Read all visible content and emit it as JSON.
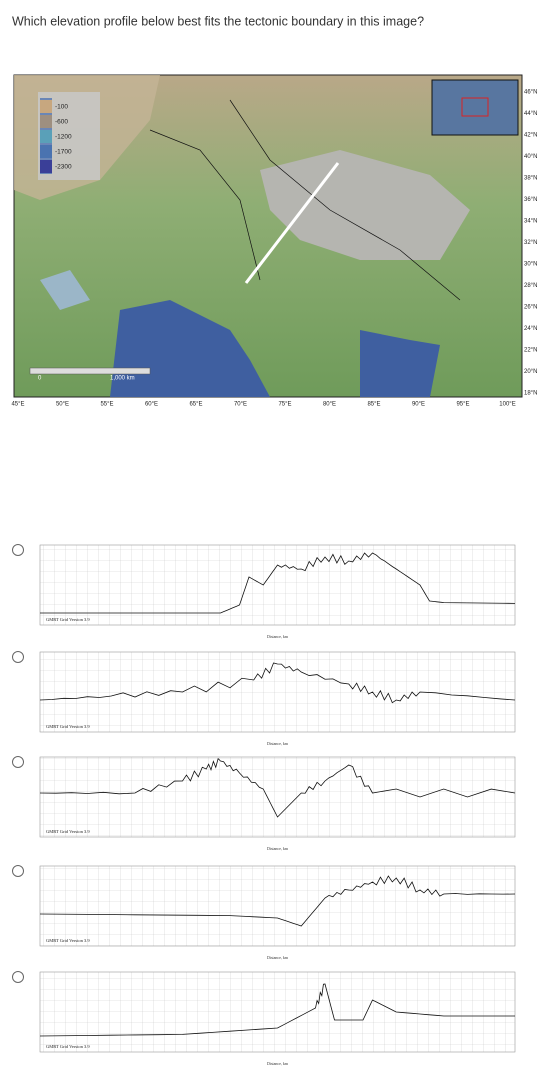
{
  "question": "Which elevation profile below best fits the tectonic boundary in this image?",
  "map": {
    "latitude_labels": [
      "46°N",
      "44°N",
      "42°N",
      "40°N",
      "38°N",
      "36°N",
      "34°N",
      "32°N",
      "30°N",
      "28°N",
      "26°N",
      "24°N",
      "22°N",
      "20°N",
      "18°N"
    ],
    "longitude_labels": [
      "45°E",
      "50°E",
      "55°E",
      "60°E",
      "65°E",
      "70°E",
      "75°E",
      "80°E",
      "85°E",
      "90°E",
      "95°E",
      "100°E"
    ],
    "legend_labels": [
      "-100",
      "-600",
      "-1200",
      "-1700",
      "-2300"
    ],
    "scale_labels": [
      "0",
      "1,000 km"
    ]
  },
  "options": [
    {
      "grid_label": "GMRT Grid Version 3.9",
      "x_axis_label": "Distance, km"
    },
    {
      "grid_label": "GMRT Grid Version 3.9",
      "x_axis_label": "Distance, km"
    },
    {
      "grid_label": "GMRT Grid Version 3.9",
      "x_axis_label": "Distance, km"
    },
    {
      "grid_label": "GMRT Grid Version 3.9",
      "x_axis_label": "Distance, km"
    },
    {
      "grid_label": "GMRT Grid Version 3.9",
      "x_axis_label": "Distance, km"
    }
  ]
}
